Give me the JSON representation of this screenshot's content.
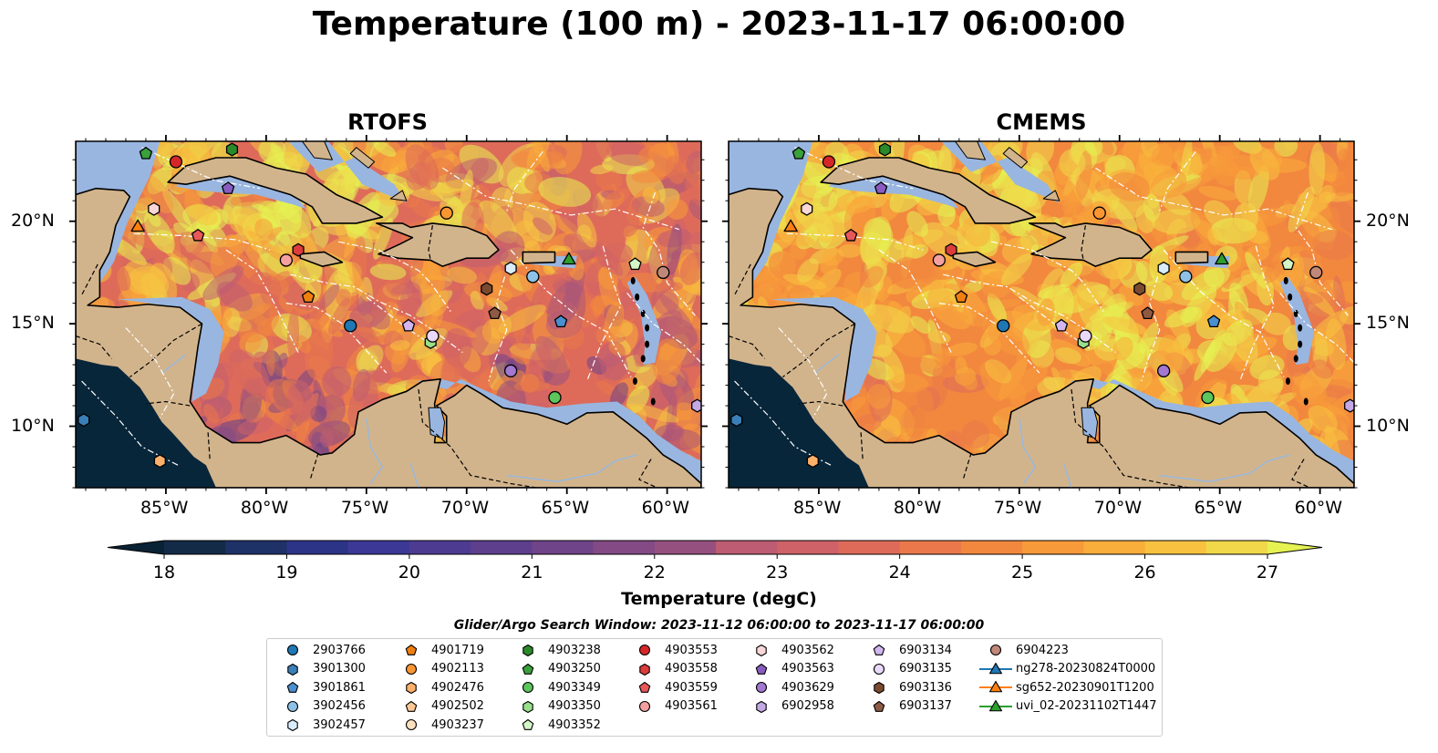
{
  "title": "Temperature (100 m) - 2023-11-17 06:00:00",
  "panels": [
    {
      "title": "RTOFS",
      "variant": "rtofs"
    },
    {
      "title": "CMEMS",
      "variant": "cmems"
    }
  ],
  "axes": {
    "lon_ticks": [
      "85°W",
      "80°W",
      "75°W",
      "70°W",
      "65°W",
      "60°W"
    ],
    "lat_ticks": [
      "20°N",
      "15°N",
      "10°N"
    ],
    "lon_range": [
      -89.5,
      -58.3
    ],
    "lat_range": [
      7.0,
      23.9
    ]
  },
  "colorbar": {
    "label": "Temperature (degC)",
    "min": 18,
    "max": 27,
    "ticks": [
      "18",
      "19",
      "20",
      "21",
      "22",
      "23",
      "24",
      "25",
      "26",
      "27"
    ],
    "colors": [
      "#0a2235",
      "#142b48",
      "#1f3268",
      "#2c3488",
      "#3c3896",
      "#4d3b92",
      "#5e3f8e",
      "#704489",
      "#834a85",
      "#965080",
      "#aa567a",
      "#bd5c72",
      "#cf6268",
      "#de6b5a",
      "#ea784a",
      "#f2883e",
      "#f79a3a",
      "#f9ad3b",
      "#f8c240",
      "#f0d84a",
      "#e6f252"
    ],
    "extend": "both"
  },
  "map_colors": {
    "land": "#d2b48c",
    "shelf": "#99b6e0",
    "pacific": "#08263a"
  },
  "legend": {
    "title": "Glider/Argo Search Window: 2023-11-12 06:00:00 to 2023-11-17 06:00:00",
    "columns": [
      [
        {
          "label": "2903766",
          "marker": "circle",
          "color": "#1f77b4"
        },
        {
          "label": "3901300",
          "marker": "hexagon",
          "color": "#3a7fb8"
        },
        {
          "label": "3901861",
          "marker": "pentagon",
          "color": "#4a90d0"
        },
        {
          "label": "3902456",
          "marker": "circle",
          "color": "#8ec1e8"
        },
        {
          "label": "3902457",
          "marker": "hexagon",
          "color": "#d8ecfa"
        }
      ],
      [
        {
          "label": "4901719",
          "marker": "pentagon",
          "color": "#f07f10"
        },
        {
          "label": "4902113",
          "marker": "circle",
          "color": "#fa9632"
        },
        {
          "label": "4902476",
          "marker": "hexagon",
          "color": "#fdb06a"
        },
        {
          "label": "4902502",
          "marker": "pentagon",
          "color": "#fdc896"
        },
        {
          "label": "4903237",
          "marker": "circle",
          "color": "#fee0bf"
        }
      ],
      [
        {
          "label": "4903238",
          "marker": "hexagon",
          "color": "#2a8a2a"
        },
        {
          "label": "4903250",
          "marker": "pentagon",
          "color": "#3aa03a"
        },
        {
          "label": "4903349",
          "marker": "circle",
          "color": "#5cc65c"
        },
        {
          "label": "4903350",
          "marker": "hexagon",
          "color": "#98df8a"
        },
        {
          "label": "4903352",
          "marker": "pentagon",
          "color": "#d4f5c8"
        }
      ],
      [
        {
          "label": "4903553",
          "marker": "circle",
          "color": "#d62728"
        },
        {
          "label": "4903558",
          "marker": "hexagon",
          "color": "#dc3c3c"
        },
        {
          "label": "4903559",
          "marker": "pentagon",
          "color": "#e85858"
        },
        {
          "label": "4903561",
          "marker": "circle",
          "color": "#f4a0a0"
        }
      ],
      [
        {
          "label": "4903562",
          "marker": "hexagon",
          "color": "#fad6d6"
        },
        {
          "label": "4903563",
          "marker": "pentagon",
          "color": "#8a5cc0"
        },
        {
          "label": "4903629",
          "marker": "circle",
          "color": "#a278d0"
        },
        {
          "label": "6902958",
          "marker": "hexagon",
          "color": "#c4a8e4"
        }
      ],
      [
        {
          "label": "6903134",
          "marker": "pentagon",
          "color": "#d2b6f0"
        },
        {
          "label": "6903135",
          "marker": "circle",
          "color": "#ead8fa"
        },
        {
          "label": "6903136",
          "marker": "hexagon",
          "color": "#7a4a30"
        },
        {
          "label": "6903137",
          "marker": "pentagon",
          "color": "#8f5a44"
        }
      ],
      [
        {
          "label": "6904223",
          "marker": "circle",
          "color": "#c08878"
        },
        {
          "label": "ng278-20230824T0000",
          "marker": "triangle-line",
          "color": "#1f77b4"
        },
        {
          "label": "sg652-20230901T1200",
          "marker": "triangle-line",
          "color": "#ff7f0e"
        },
        {
          "label": "uvi_02-20231102T1447",
          "marker": "triangle-line",
          "color": "#2ca02c"
        }
      ]
    ]
  }
}
